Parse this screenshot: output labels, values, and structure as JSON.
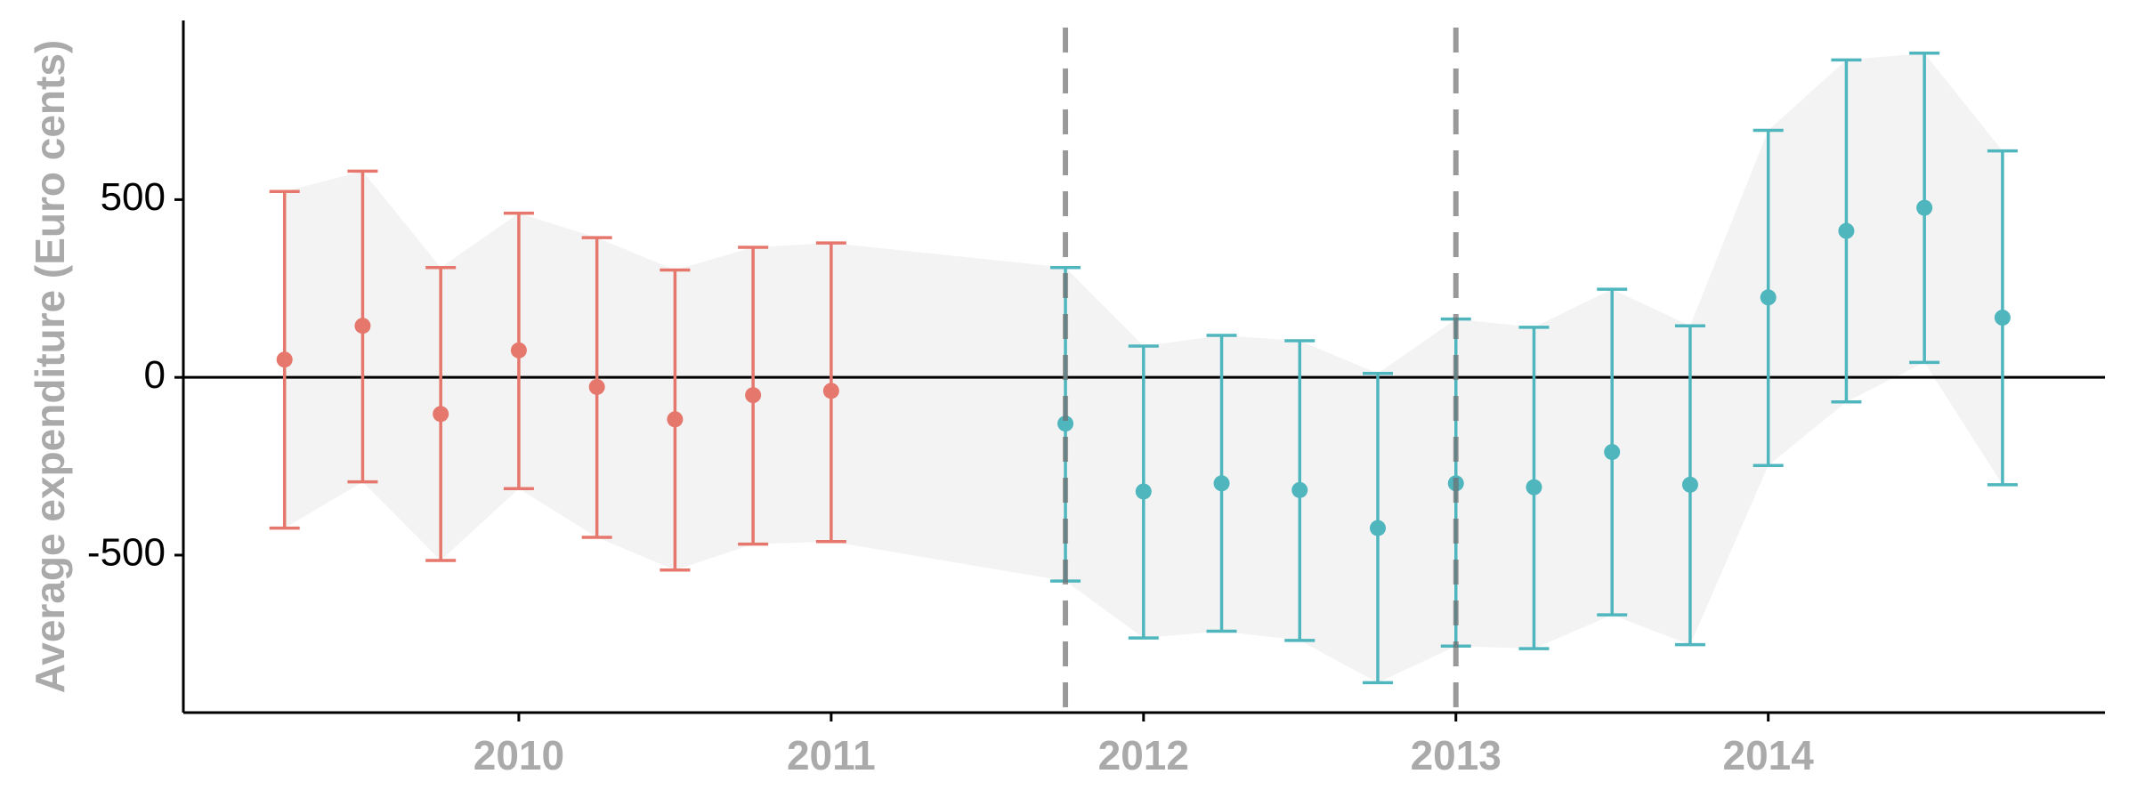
{
  "chart_data": {
    "type": "errorbar",
    "y_label": "Average expenditure (Euro cents)",
    "xlim": [
      2008.926,
      2015.078
    ],
    "xticks": [
      2010,
      2011,
      2012,
      2013,
      2014
    ],
    "ylim": [
      -943,
      1004
    ],
    "yticks": [
      -500,
      0,
      500
    ],
    "hline": 0,
    "vlines": [
      2011.75,
      2013
    ],
    "ribbon_color": "#f3f3f4",
    "series": [
      {
        "color": "#e5776d",
        "x": [
          2009.25,
          2009.5,
          2009.75,
          2010,
          2010.25,
          2010.5,
          2010.75,
          2011
        ],
        "values": [
          50,
          145,
          -103,
          76,
          -27,
          -118,
          -50,
          -38
        ],
        "upper": [
          523,
          580,
          309,
          462,
          393,
          302,
          366,
          378
        ],
        "lower": [
          -424,
          -294,
          -515,
          -313,
          -450,
          -542,
          -469,
          -462
        ]
      },
      {
        "color": "#4fb6be",
        "x": [
          2011.75,
          2012,
          2012.25,
          2012.5,
          2012.75,
          2013,
          2013.25,
          2013.5,
          2013.75,
          2014,
          2014.25,
          2014.5,
          2014.75
        ],
        "values": [
          -130,
          -321,
          -298,
          -317,
          -424,
          -298,
          -309,
          -210,
          -302,
          225,
          412,
          477,
          168
        ],
        "upper": [
          309,
          88,
          118,
          103,
          11,
          164,
          141,
          248,
          145,
          695,
          893,
          912,
          637
        ],
        "lower": [
          -573,
          -733,
          -714,
          -740,
          -859,
          -756,
          -763,
          -668,
          -752,
          -248,
          -69,
          42,
          -302
        ]
      }
    ]
  }
}
